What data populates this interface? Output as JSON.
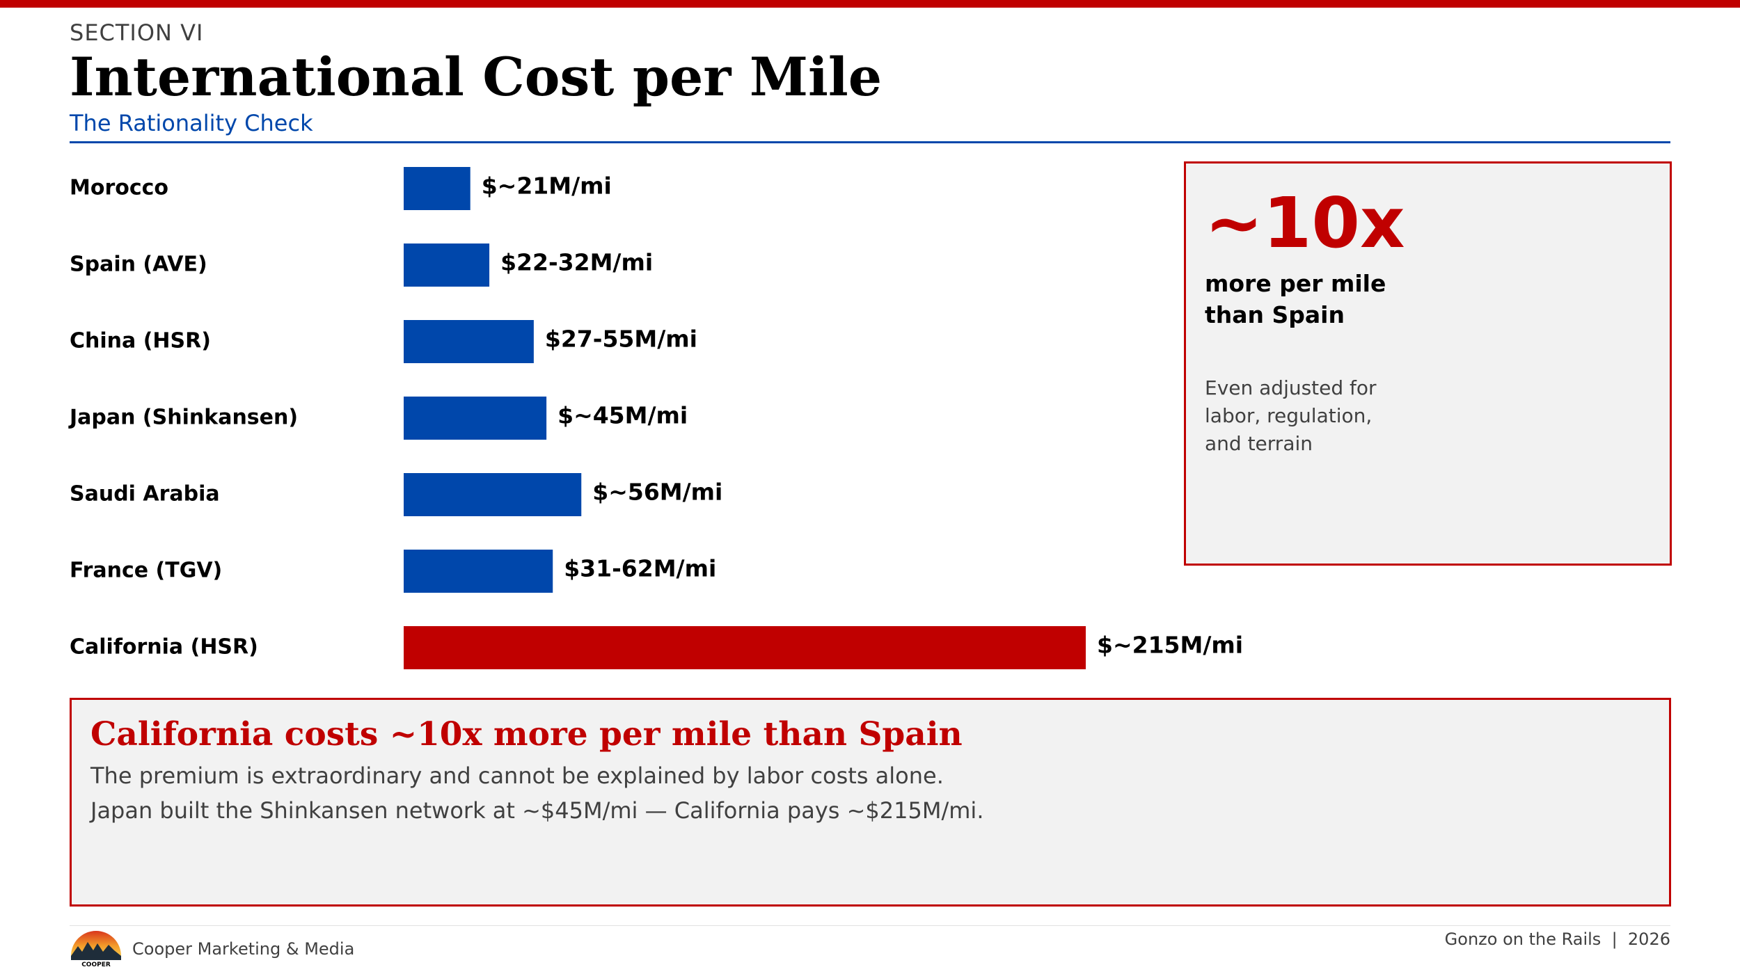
{
  "header": {
    "section": "SECTION VI",
    "title": "International Cost per Mile",
    "subtitle": "The Rationality Check"
  },
  "colors": {
    "accent_red": "#c00000",
    "accent_blue": "#0047ab",
    "panel_bg": "#f2f2f2"
  },
  "chart_data": {
    "type": "bar",
    "orientation": "horizontal",
    "categories": [
      "Morocco",
      "Spain (AVE)",
      "China (HSR)",
      "Japan (Shinkansen)",
      "Saudi Arabia",
      "France (TGV)",
      "California (HSR)"
    ],
    "values": [
      21,
      27,
      41,
      45,
      56,
      47,
      215
    ],
    "data_labels": [
      "$~21M/mi",
      "$22-32M/mi",
      "$27-55M/mi",
      "$~45M/mi",
      "$~56M/mi",
      "$31-62M/mi",
      "$~215M/mi"
    ],
    "colors": [
      "#0047ab",
      "#0047ab",
      "#0047ab",
      "#0047ab",
      "#0047ab",
      "#0047ab",
      "#c00000"
    ],
    "unit": "$M per mile",
    "xlim": [
      0,
      250
    ],
    "grid": false,
    "legend": "none"
  },
  "callout": {
    "big": "~10x",
    "strong": "more per mile than Spain",
    "note": "Even adjusted for labor, regulation, and terrain"
  },
  "summary": {
    "heading": "California costs ~10x more per mile than Spain",
    "line1": "The premium is extraordinary and cannot be explained by labor costs alone.",
    "line2": "Japan built the Shinkansen network at ~$45M/mi — California pays ~$215M/mi."
  },
  "footer": {
    "logo_text": "COOPER",
    "company": "Cooper Marketing & Media",
    "right": "Gonzo on the Rails  |  2026"
  }
}
